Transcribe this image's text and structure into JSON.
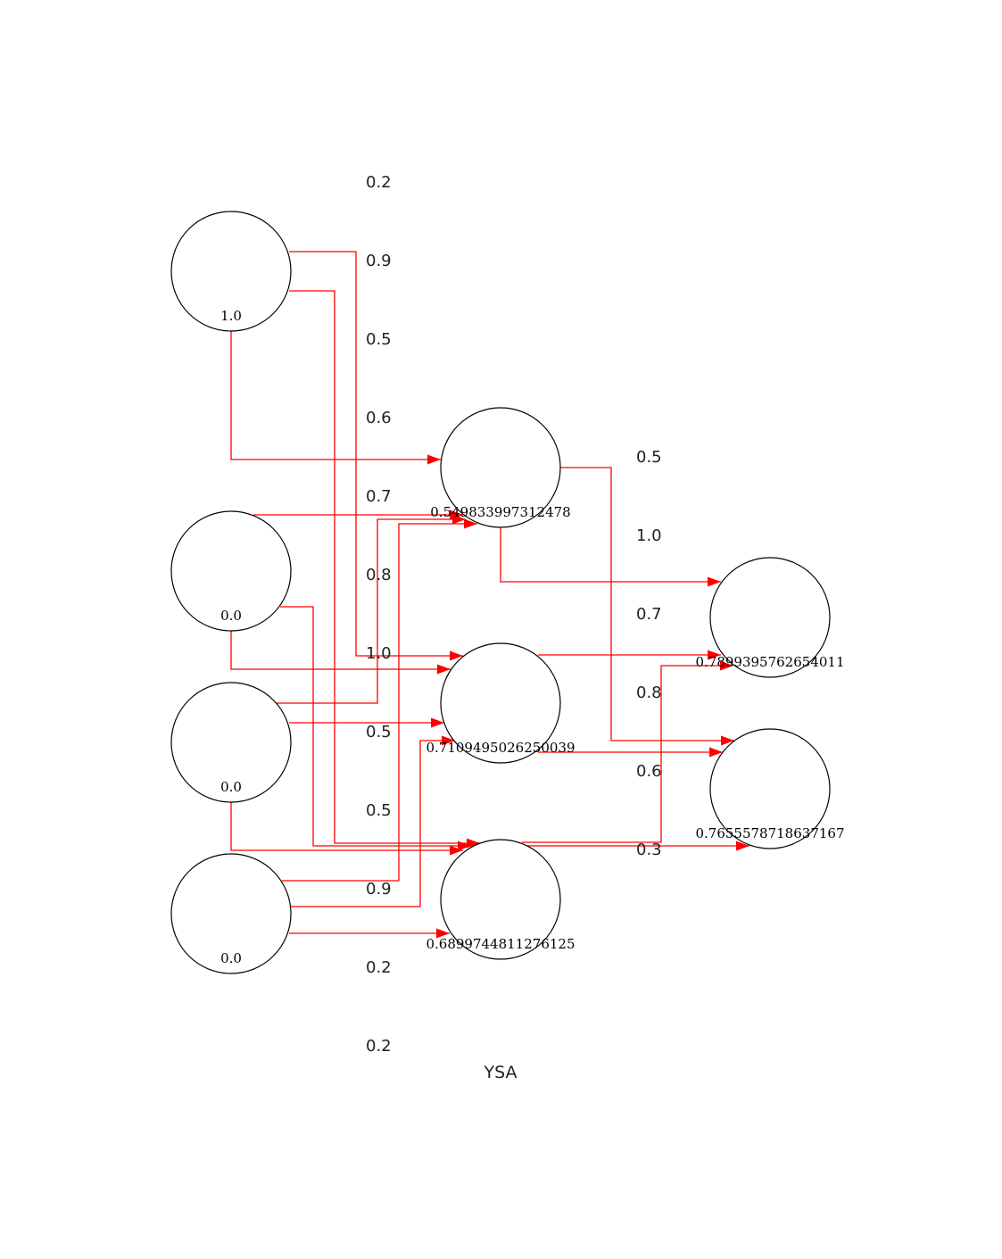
{
  "title": "YSA",
  "colors": {
    "edge": "#ff0000",
    "node_stroke": "#000000",
    "text": "#222222"
  },
  "nodes": [
    {
      "id": "in1",
      "value": "1.0"
    },
    {
      "id": "in2",
      "value": "0.0"
    },
    {
      "id": "in3",
      "value": "0.0"
    },
    {
      "id": "in4",
      "value": "0.0"
    },
    {
      "id": "h1",
      "value": "0.549833997312478"
    },
    {
      "id": "h2",
      "value": "0.7109495026250039"
    },
    {
      "id": "h3",
      "value": "0.6899744811276125"
    },
    {
      "id": "out1",
      "value": "0.7899395762654011"
    },
    {
      "id": "out2",
      "value": "0.7655578718637167"
    }
  ],
  "weights_input_hidden": [
    "0.2",
    "0.9",
    "0.5",
    "0.6",
    "0.7",
    "0.8",
    "1.0",
    "0.5",
    "0.5",
    "0.9",
    "0.2",
    "0.2"
  ],
  "weights_hidden_output": [
    "0.5",
    "1.0",
    "0.7",
    "0.8",
    "0.6",
    "0.3"
  ],
  "edges": [
    {
      "from": "in1",
      "to": "h1"
    },
    {
      "from": "in1",
      "to": "h2"
    },
    {
      "from": "in1",
      "to": "h3"
    },
    {
      "from": "in2",
      "to": "h1"
    },
    {
      "from": "in2",
      "to": "h2"
    },
    {
      "from": "in2",
      "to": "h3"
    },
    {
      "from": "in3",
      "to": "h1"
    },
    {
      "from": "in3",
      "to": "h2"
    },
    {
      "from": "in3",
      "to": "h3"
    },
    {
      "from": "in4",
      "to": "h1"
    },
    {
      "from": "in4",
      "to": "h2"
    },
    {
      "from": "in4",
      "to": "h3"
    },
    {
      "from": "h1",
      "to": "out1"
    },
    {
      "from": "h1",
      "to": "out2"
    },
    {
      "from": "h2",
      "to": "out1"
    },
    {
      "from": "h2",
      "to": "out2"
    },
    {
      "from": "h3",
      "to": "out1"
    },
    {
      "from": "h3",
      "to": "out2"
    }
  ]
}
